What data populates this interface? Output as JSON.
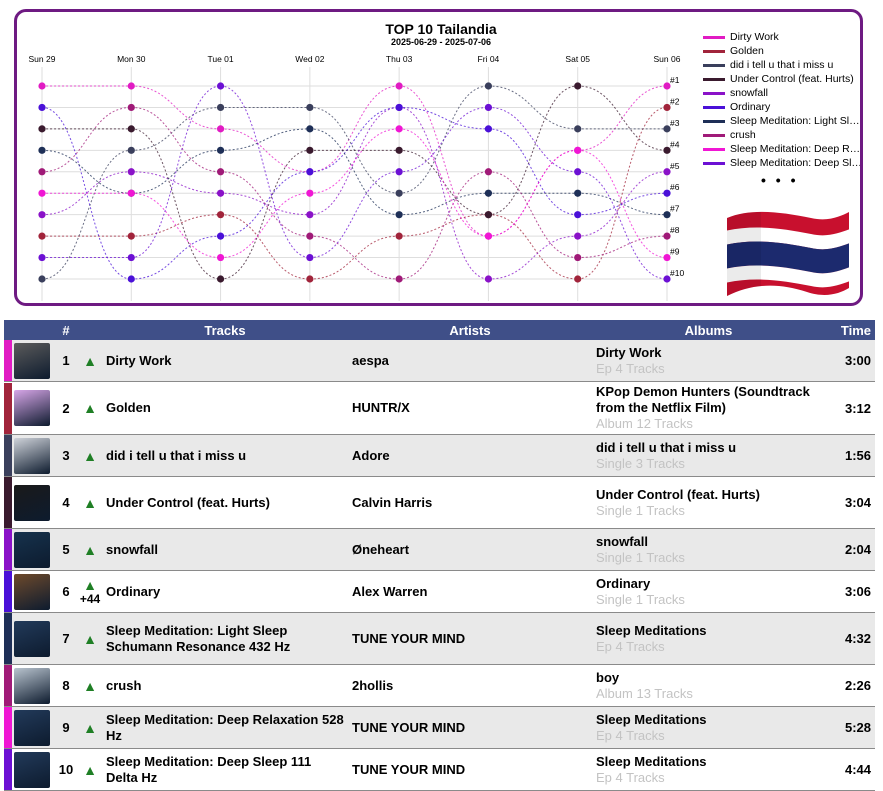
{
  "chart": {
    "title": "TOP 10 Tailandia",
    "subtitle": "2025-06-29 - 2025-07-06",
    "days": [
      "Sun 29",
      "Mon 30",
      "Tue 01",
      "Wed 02",
      "Thu 03",
      "Fri 04",
      "Sat 05",
      "Sun 06"
    ],
    "rank_labels": [
      "#1",
      "#2",
      "#3",
      "#4",
      "#5",
      "#6",
      "#7",
      "#8",
      "#9",
      "#10"
    ],
    "legend_more": "• • •"
  },
  "chart_data": {
    "type": "line",
    "x": [
      "Sun 29",
      "Mon 30",
      "Tue 01",
      "Wed 02",
      "Thu 03",
      "Fri 04",
      "Sat 05",
      "Sun 06"
    ],
    "ylim": [
      10,
      1
    ],
    "series": [
      {
        "name": "Dirty Work",
        "color": "#e11bc3",
        "values": [
          1,
          1,
          3,
          5,
          1,
          8,
          4,
          1
        ]
      },
      {
        "name": "Golden",
        "color": "#a1243b",
        "values": [
          8,
          8,
          7,
          10,
          8,
          7,
          10,
          2
        ]
      },
      {
        "name": "did i tell u that i miss u",
        "color": "#3a3f5c",
        "values": [
          10,
          4,
          2,
          2,
          6,
          1,
          3,
          3
        ]
      },
      {
        "name": "Under Control (feat. Hurts)",
        "color": "#3a1a2e",
        "values": [
          3,
          3,
          10,
          4,
          4,
          7,
          1,
          4
        ]
      },
      {
        "name": "snowfall",
        "color": "#8a12c8",
        "values": [
          7,
          5,
          6,
          7,
          2,
          10,
          8,
          5
        ]
      },
      {
        "name": "Ordinary",
        "color": "#4a10d8",
        "values": [
          2,
          10,
          8,
          5,
          2,
          3,
          7,
          6
        ]
      },
      {
        "name": "Sleep Meditation: Light Sleep Schumann Resonance 432 Hz",
        "color": "#1e2f57",
        "values": [
          4,
          6,
          4,
          3,
          7,
          6,
          6,
          7
        ]
      },
      {
        "name": "crush",
        "color": "#a01a78",
        "values": [
          5,
          2,
          5,
          8,
          10,
          5,
          9,
          8
        ]
      },
      {
        "name": "Sleep Meditation: Deep Relaxation 528 Hz",
        "color": "#f016d4",
        "values": [
          6,
          6,
          9,
          6,
          3,
          8,
          4,
          9
        ]
      },
      {
        "name": "Sleep Meditation: Deep Sleep 111 Delta Hz",
        "color": "#6c10d4",
        "values": [
          9,
          9,
          1,
          9,
          5,
          2,
          5,
          10
        ]
      }
    ]
  },
  "legend": [
    {
      "label": "Dirty Work",
      "color": "#e11bc3"
    },
    {
      "label": "Golden",
      "color": "#a1243b"
    },
    {
      "label": "did i tell u that i miss u",
      "color": "#3a3f5c"
    },
    {
      "label": "Under Control (feat. Hurts)",
      "color": "#3a1a2e"
    },
    {
      "label": "snowfall",
      "color": "#8a12c8"
    },
    {
      "label": "Ordinary",
      "color": "#4a10d8"
    },
    {
      "label": "Sleep Meditation: Light Sle...",
      "color": "#1e2f57"
    },
    {
      "label": "crush",
      "color": "#a01a78"
    },
    {
      "label": "Sleep Meditation: Deep Re...",
      "color": "#f016d4"
    },
    {
      "label": "Sleep Meditation: Deep Sle...",
      "color": "#6c10d4"
    }
  ],
  "table": {
    "headers": {
      "rank": "#",
      "tracks": "Tracks",
      "artists": "Artists",
      "albums": "Albums",
      "time": "Time"
    },
    "rows": [
      {
        "rank": "1",
        "trend": "▲",
        "change": "",
        "track": "Dirty Work",
        "artist": "aespa",
        "album": "Dirty Work",
        "album_info": "Ep 4 Tracks",
        "time": "3:00",
        "color": "#e11bc3",
        "cover": "#5b5b5b"
      },
      {
        "rank": "2",
        "trend": "▲",
        "change": "",
        "track": "Golden",
        "artist": "HUNTR/X",
        "album": "KPop Demon Hunters (Soundtrack from the Netflix Film)",
        "album_info": "Album 12 Tracks",
        "time": "3:12",
        "color": "#a1243b",
        "cover": "#d7a6e8"
      },
      {
        "rank": "3",
        "trend": "▲",
        "change": "",
        "track": "did i tell u that i miss u",
        "artist": "Adore",
        "album": "did i tell u that i miss u",
        "album_info": "Single 3 Tracks",
        "time": "1:56",
        "color": "#3a3f5c",
        "cover": "#cfd3da"
      },
      {
        "rank": "4",
        "trend": "▲",
        "change": "",
        "track": "Under Control (feat. Hurts)",
        "artist": "Calvin Harris",
        "album": "Under Control (feat. Hurts)",
        "album_info": "Single 1 Tracks",
        "time": "3:04",
        "color": "#3a1a2e",
        "cover": "#1a1a1a"
      },
      {
        "rank": "5",
        "trend": "▲",
        "change": "",
        "track": "snowfall",
        "artist": "Øneheart",
        "album": "snowfall",
        "album_info": "Single 1 Tracks",
        "time": "2:04",
        "color": "#8a12c8",
        "cover": "#16324d"
      },
      {
        "rank": "6",
        "trend": "▲",
        "change": "+44",
        "track": "Ordinary",
        "artist": "Alex Warren",
        "album": "Ordinary",
        "album_info": "Single 1 Tracks",
        "time": "3:06",
        "color": "#4a10d8",
        "cover": "#6e4a2c"
      },
      {
        "rank": "7",
        "trend": "▲",
        "change": "",
        "track": "Sleep Meditation: Light Sleep Schumann Resonance 432 Hz",
        "artist": "TUNE YOUR MIND",
        "album": "Sleep Meditations",
        "album_info": "Ep 4 Tracks",
        "time": "4:32",
        "color": "#1e2f57",
        "cover": "#223a5a"
      },
      {
        "rank": "8",
        "trend": "▲",
        "change": "",
        "track": "crush",
        "artist": "2hollis",
        "album": "boy",
        "album_info": "Album 13 Tracks",
        "time": "2:26",
        "color": "#a01a78",
        "cover": "#b9c4cf"
      },
      {
        "rank": "9",
        "trend": "▲",
        "change": "",
        "track": "Sleep Meditation: Deep Relaxation 528 Hz",
        "artist": "TUNE YOUR MIND",
        "album": "Sleep Meditations",
        "album_info": "Ep 4 Tracks",
        "time": "5:28",
        "color": "#f016d4",
        "cover": "#223a5a"
      },
      {
        "rank": "10",
        "trend": "▲",
        "change": "",
        "track": "Sleep Meditation: Deep Sleep 111 Delta Hz",
        "artist": "TUNE YOUR MIND",
        "album": "Sleep Meditations",
        "album_info": "Ep 4 Tracks",
        "time": "4:44",
        "color": "#6c10d4",
        "cover": "#223a5a"
      }
    ]
  },
  "flag": {
    "name": "thailand-flag-icon",
    "colors": [
      "#c8102e",
      "#ffffff",
      "#1c2a6e"
    ]
  }
}
